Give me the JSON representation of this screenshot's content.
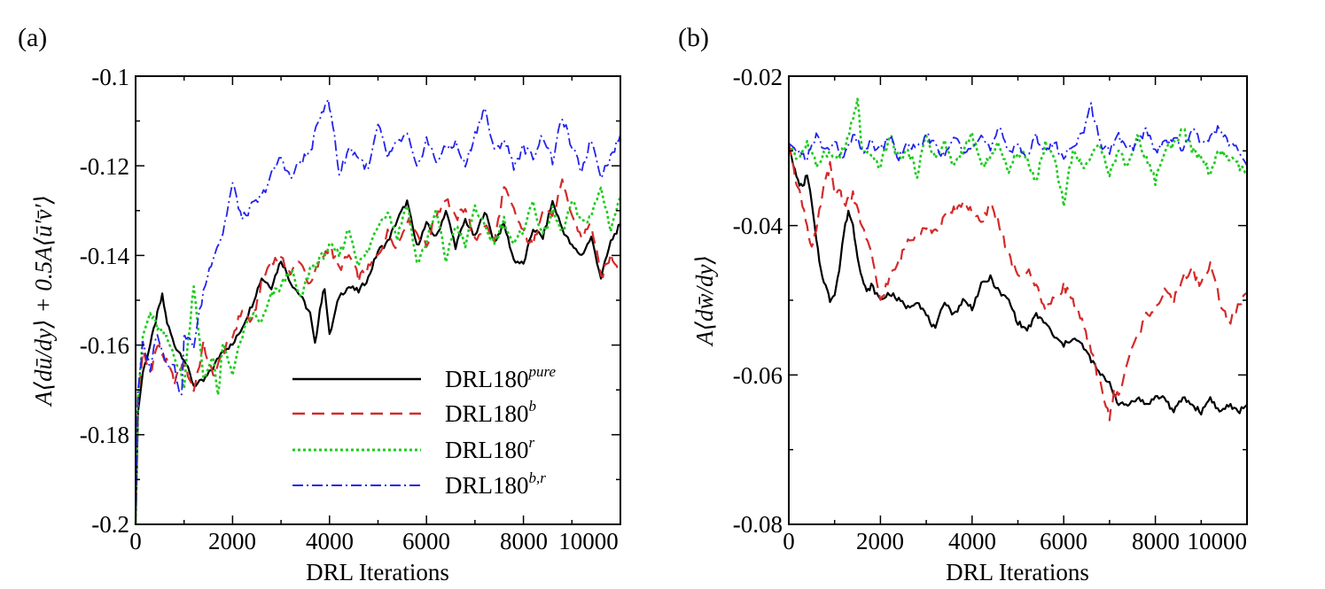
{
  "colors": {
    "pure": "#000000",
    "b": "#d42a2a",
    "r": "#1ecb1e",
    "br": "#2323ee"
  },
  "chart_data": [
    {
      "panel": "(a)",
      "type": "line",
      "xlabel": "DRL Iterations",
      "ylabel": "A⟨dū/dy⟩ + 0.5A⟨ū′v̄′⟩",
      "xlim": [
        0,
        10000
      ],
      "ylim": [
        -0.2,
        -0.1
      ],
      "xticks": [
        0,
        2000,
        4000,
        6000,
        8000,
        10000
      ],
      "xtick_labels": [
        "0",
        "2000",
        "4000",
        "6000",
        "8000",
        "10000"
      ],
      "yticks": [
        -0.2,
        -0.18,
        -0.16,
        -0.14,
        -0.12,
        -0.1
      ],
      "ytick_labels": [
        "-0.2",
        "-0.18",
        "-0.16",
        "-0.14",
        "-0.12",
        "-0.1"
      ],
      "legend": {
        "position": "lower-right"
      },
      "series": [
        {
          "key": "pure",
          "name": "DRL180",
          "sup": "pure",
          "style": "solid",
          "x": [
            0,
            50,
            150,
            300,
            450,
            550,
            650,
            800,
            1000,
            1200,
            1400,
            1600,
            1800,
            2000,
            2200,
            2400,
            2600,
            2800,
            3000,
            3200,
            3400,
            3600,
            3700,
            3800,
            3900,
            4000,
            4200,
            4400,
            4600,
            4800,
            5000,
            5200,
            5400,
            5600,
            5800,
            6000,
            6200,
            6400,
            6600,
            6800,
            7000,
            7200,
            7400,
            7600,
            7800,
            8000,
            8200,
            8400,
            8600,
            8800,
            9000,
            9200,
            9400,
            9600,
            9800,
            10000
          ],
          "y": [
            -0.2,
            -0.175,
            -0.166,
            -0.16,
            -0.153,
            -0.149,
            -0.155,
            -0.16,
            -0.163,
            -0.169,
            -0.168,
            -0.165,
            -0.161,
            -0.16,
            -0.156,
            -0.151,
            -0.145,
            -0.147,
            -0.141,
            -0.146,
            -0.149,
            -0.153,
            -0.16,
            -0.152,
            -0.147,
            -0.158,
            -0.149,
            -0.147,
            -0.148,
            -0.145,
            -0.139,
            -0.137,
            -0.132,
            -0.128,
            -0.138,
            -0.133,
            -0.136,
            -0.13,
            -0.138,
            -0.132,
            -0.136,
            -0.13,
            -0.137,
            -0.133,
            -0.141,
            -0.142,
            -0.134,
            -0.136,
            -0.128,
            -0.134,
            -0.138,
            -0.14,
            -0.136,
            -0.145,
            -0.137,
            -0.133
          ]
        },
        {
          "key": "b",
          "name": "DRL180",
          "sup": "b",
          "style": "dashed",
          "x": [
            0,
            50,
            150,
            300,
            450,
            600,
            800,
            1000,
            1200,
            1400,
            1600,
            1800,
            2000,
            2200,
            2400,
            2600,
            2800,
            3000,
            3200,
            3400,
            3600,
            3800,
            4000,
            4200,
            4400,
            4600,
            4800,
            5000,
            5200,
            5400,
            5600,
            5800,
            6000,
            6200,
            6400,
            6600,
            6800,
            7000,
            7200,
            7400,
            7600,
            7800,
            8000,
            8200,
            8400,
            8600,
            8800,
            9000,
            9200,
            9400,
            9600,
            9800,
            10000
          ],
          "y": [
            -0.2,
            -0.172,
            -0.162,
            -0.166,
            -0.16,
            -0.163,
            -0.168,
            -0.164,
            -0.17,
            -0.16,
            -0.167,
            -0.162,
            -0.158,
            -0.152,
            -0.155,
            -0.146,
            -0.141,
            -0.141,
            -0.144,
            -0.141,
            -0.147,
            -0.141,
            -0.138,
            -0.143,
            -0.14,
            -0.145,
            -0.143,
            -0.14,
            -0.135,
            -0.138,
            -0.132,
            -0.135,
            -0.138,
            -0.131,
            -0.127,
            -0.132,
            -0.129,
            -0.137,
            -0.133,
            -0.137,
            -0.125,
            -0.13,
            -0.135,
            -0.138,
            -0.129,
            -0.131,
            -0.124,
            -0.131,
            -0.136,
            -0.133,
            -0.145,
            -0.14,
            -0.143
          ]
        },
        {
          "key": "r",
          "name": "DRL180",
          "sup": "r",
          "style": "dotted",
          "x": [
            0,
            50,
            150,
            300,
            450,
            600,
            800,
            1000,
            1200,
            1400,
            1600,
            1700,
            1800,
            2000,
            2200,
            2400,
            2600,
            2800,
            3000,
            3200,
            3400,
            3600,
            3800,
            4000,
            4200,
            4400,
            4600,
            4800,
            5000,
            5200,
            5400,
            5600,
            5800,
            6000,
            6200,
            6400,
            6600,
            6800,
            7000,
            7200,
            7400,
            7600,
            7800,
            8000,
            8200,
            8400,
            8600,
            8800,
            9000,
            9200,
            9400,
            9600,
            9800,
            10000
          ],
          "y": [
            -0.2,
            -0.172,
            -0.158,
            -0.153,
            -0.156,
            -0.158,
            -0.162,
            -0.169,
            -0.146,
            -0.168,
            -0.162,
            -0.172,
            -0.16,
            -0.166,
            -0.158,
            -0.153,
            -0.155,
            -0.149,
            -0.147,
            -0.143,
            -0.15,
            -0.143,
            -0.141,
            -0.138,
            -0.14,
            -0.134,
            -0.142,
            -0.139,
            -0.133,
            -0.13,
            -0.136,
            -0.128,
            -0.142,
            -0.137,
            -0.13,
            -0.141,
            -0.133,
            -0.138,
            -0.129,
            -0.134,
            -0.137,
            -0.132,
            -0.138,
            -0.134,
            -0.128,
            -0.136,
            -0.13,
            -0.135,
            -0.128,
            -0.133,
            -0.131,
            -0.125,
            -0.134,
            -0.127
          ]
        },
        {
          "key": "br",
          "name": "DRL180",
          "sup": "b,r",
          "style": "dashdot",
          "x": [
            0,
            50,
            150,
            300,
            450,
            600,
            800,
            950,
            1000,
            1200,
            1400,
            1600,
            1800,
            2000,
            2200,
            2400,
            2600,
            2800,
            3000,
            3200,
            3400,
            3600,
            3800,
            3950,
            4000,
            4100,
            4200,
            4400,
            4600,
            4800,
            5000,
            5200,
            5400,
            5600,
            5800,
            6000,
            6200,
            6400,
            6600,
            6800,
            7000,
            7200,
            7400,
            7600,
            7800,
            8000,
            8200,
            8400,
            8600,
            8800,
            9000,
            9200,
            9400,
            9600,
            9800,
            10000
          ],
          "y": [
            -0.2,
            -0.17,
            -0.16,
            -0.165,
            -0.157,
            -0.163,
            -0.165,
            -0.172,
            -0.158,
            -0.16,
            -0.148,
            -0.14,
            -0.135,
            -0.124,
            -0.132,
            -0.129,
            -0.127,
            -0.122,
            -0.118,
            -0.123,
            -0.119,
            -0.117,
            -0.109,
            -0.105,
            -0.107,
            -0.113,
            -0.122,
            -0.116,
            -0.118,
            -0.121,
            -0.111,
            -0.118,
            -0.115,
            -0.113,
            -0.121,
            -0.114,
            -0.119,
            -0.116,
            -0.115,
            -0.12,
            -0.113,
            -0.107,
            -0.117,
            -0.114,
            -0.12,
            -0.116,
            -0.118,
            -0.113,
            -0.119,
            -0.109,
            -0.116,
            -0.121,
            -0.114,
            -0.122,
            -0.118,
            -0.113
          ]
        }
      ]
    },
    {
      "panel": "(b)",
      "type": "line",
      "xlabel": "DRL Iterations",
      "ylabel": "A⟨dw̄/dy⟩",
      "xlim": [
        0,
        10000
      ],
      "ylim": [
        -0.08,
        -0.02
      ],
      "xticks": [
        0,
        2000,
        4000,
        6000,
        8000,
        10000
      ],
      "xtick_labels": [
        "0",
        "2000",
        "4000",
        "6000",
        "8000",
        "10000"
      ],
      "yticks": [
        -0.08,
        -0.06,
        -0.04,
        -0.02
      ],
      "ytick_labels": [
        "-0.08",
        "-0.06",
        "-0.04",
        "-0.02"
      ],
      "series": [
        {
          "key": "pure",
          "name": "DRL180",
          "sup": "pure",
          "style": "solid",
          "x": [
            0,
            100,
            200,
            300,
            400,
            500,
            600,
            700,
            800,
            900,
            1000,
            1100,
            1200,
            1300,
            1400,
            1500,
            1600,
            1700,
            1800,
            2000,
            2200,
            2400,
            2600,
            2800,
            3000,
            3200,
            3400,
            3600,
            3800,
            4000,
            4200,
            4400,
            4600,
            4800,
            5000,
            5200,
            5400,
            5600,
            5800,
            6000,
            6200,
            6400,
            6600,
            6800,
            7000,
            7200,
            7400,
            7600,
            7800,
            8000,
            8200,
            8400,
            8600,
            8800,
            9000,
            9200,
            9400,
            9600,
            9800,
            10000
          ],
          "y": [
            -0.029,
            -0.032,
            -0.034,
            -0.035,
            -0.033,
            -0.037,
            -0.042,
            -0.046,
            -0.048,
            -0.05,
            -0.049,
            -0.046,
            -0.041,
            -0.038,
            -0.04,
            -0.044,
            -0.047,
            -0.049,
            -0.048,
            -0.05,
            -0.049,
            -0.05,
            -0.051,
            -0.05,
            -0.052,
            -0.054,
            -0.05,
            -0.052,
            -0.05,
            -0.051,
            -0.048,
            -0.047,
            -0.049,
            -0.05,
            -0.053,
            -0.054,
            -0.052,
            -0.053,
            -0.055,
            -0.056,
            -0.055,
            -0.056,
            -0.058,
            -0.06,
            -0.061,
            -0.064,
            -0.064,
            -0.063,
            -0.064,
            -0.063,
            -0.063,
            -0.065,
            -0.063,
            -0.064,
            -0.065,
            -0.063,
            -0.065,
            -0.064,
            -0.065,
            -0.064
          ]
        },
        {
          "key": "b",
          "name": "DRL180",
          "sup": "b",
          "style": "dashed",
          "x": [
            0,
            100,
            200,
            300,
            400,
            500,
            600,
            700,
            800,
            900,
            1000,
            1100,
            1200,
            1400,
            1600,
            1800,
            2000,
            2200,
            2400,
            2600,
            2800,
            3000,
            3200,
            3400,
            3600,
            3800,
            4000,
            4200,
            4400,
            4600,
            4800,
            5000,
            5200,
            5400,
            5600,
            5800,
            6000,
            6200,
            6400,
            6600,
            6800,
            7000,
            7100,
            7200,
            7400,
            7600,
            7800,
            8000,
            8200,
            8400,
            8600,
            8800,
            9000,
            9200,
            9400,
            9600,
            9800,
            10000
          ],
          "y": [
            -0.029,
            -0.032,
            -0.035,
            -0.037,
            -0.04,
            -0.043,
            -0.041,
            -0.037,
            -0.034,
            -0.032,
            -0.036,
            -0.035,
            -0.037,
            -0.036,
            -0.04,
            -0.044,
            -0.05,
            -0.047,
            -0.045,
            -0.042,
            -0.041,
            -0.04,
            -0.041,
            -0.039,
            -0.038,
            -0.037,
            -0.038,
            -0.04,
            -0.037,
            -0.04,
            -0.044,
            -0.047,
            -0.046,
            -0.048,
            -0.051,
            -0.05,
            -0.048,
            -0.05,
            -0.053,
            -0.057,
            -0.061,
            -0.066,
            -0.062,
            -0.063,
            -0.058,
            -0.055,
            -0.052,
            -0.051,
            -0.049,
            -0.05,
            -0.047,
            -0.046,
            -0.048,
            -0.045,
            -0.05,
            -0.053,
            -0.051,
            -0.049
          ]
        },
        {
          "key": "r",
          "name": "DRL180",
          "sup": "r",
          "style": "dotted",
          "x": [
            0,
            200,
            400,
            600,
            800,
            1000,
            1200,
            1400,
            1500,
            1600,
            1800,
            2000,
            2200,
            2400,
            2600,
            2800,
            3000,
            3200,
            3400,
            3600,
            3800,
            4000,
            4200,
            4400,
            4600,
            4800,
            5000,
            5200,
            5400,
            5600,
            5800,
            6000,
            6200,
            6400,
            6600,
            6800,
            7000,
            7200,
            7400,
            7600,
            7800,
            8000,
            8200,
            8400,
            8600,
            8800,
            9000,
            9200,
            9400,
            9600,
            9800,
            10000
          ],
          "y": [
            -0.029,
            -0.031,
            -0.029,
            -0.032,
            -0.03,
            -0.031,
            -0.03,
            -0.026,
            -0.023,
            -0.03,
            -0.031,
            -0.032,
            -0.028,
            -0.031,
            -0.03,
            -0.033,
            -0.028,
            -0.031,
            -0.029,
            -0.032,
            -0.03,
            -0.028,
            -0.032,
            -0.031,
            -0.029,
            -0.033,
            -0.03,
            -0.031,
            -0.034,
            -0.029,
            -0.031,
            -0.037,
            -0.03,
            -0.032,
            -0.031,
            -0.029,
            -0.033,
            -0.03,
            -0.032,
            -0.028,
            -0.031,
            -0.034,
            -0.03,
            -0.029,
            -0.027,
            -0.03,
            -0.031,
            -0.033,
            -0.03,
            -0.031,
            -0.032,
            -0.033
          ]
        },
        {
          "key": "br",
          "name": "DRL180",
          "sup": "b,r",
          "style": "dashdot",
          "x": [
            0,
            200,
            400,
            600,
            800,
            1000,
            1200,
            1400,
            1600,
            1800,
            2000,
            2200,
            2400,
            2600,
            2800,
            3000,
            3200,
            3400,
            3600,
            3800,
            4000,
            4200,
            4400,
            4600,
            4800,
            5000,
            5200,
            5400,
            5600,
            5800,
            6000,
            6200,
            6400,
            6600,
            6800,
            7000,
            7200,
            7400,
            7600,
            7800,
            8000,
            8200,
            8400,
            8600,
            8800,
            9000,
            9200,
            9400,
            9600,
            9800,
            10000
          ],
          "y": [
            -0.029,
            -0.03,
            -0.031,
            -0.028,
            -0.03,
            -0.029,
            -0.031,
            -0.028,
            -0.03,
            -0.029,
            -0.03,
            -0.028,
            -0.031,
            -0.029,
            -0.03,
            -0.028,
            -0.029,
            -0.031,
            -0.028,
            -0.03,
            -0.029,
            -0.028,
            -0.03,
            -0.027,
            -0.03,
            -0.029,
            -0.031,
            -0.028,
            -0.03,
            -0.029,
            -0.031,
            -0.029,
            -0.028,
            -0.024,
            -0.029,
            -0.03,
            -0.028,
            -0.03,
            -0.029,
            -0.027,
            -0.03,
            -0.029,
            -0.028,
            -0.03,
            -0.027,
            -0.029,
            -0.028,
            -0.027,
            -0.029,
            -0.03,
            -0.032
          ]
        }
      ]
    }
  ]
}
